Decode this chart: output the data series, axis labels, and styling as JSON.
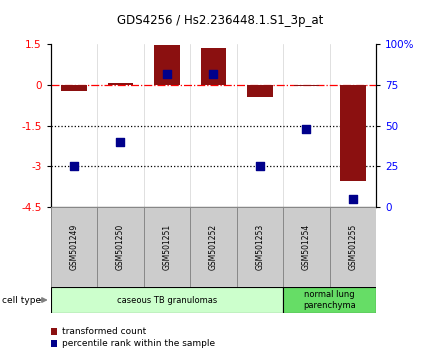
{
  "title": "GDS4256 / Hs2.236448.1.S1_3p_at",
  "samples": [
    "GSM501249",
    "GSM501250",
    "GSM501251",
    "GSM501252",
    "GSM501253",
    "GSM501254",
    "GSM501255"
  ],
  "transformed_count": [
    -0.22,
    0.07,
    1.48,
    1.35,
    -0.45,
    -0.04,
    -3.55
  ],
  "percentile_rank": [
    25,
    40,
    82,
    82,
    25,
    48,
    5
  ],
  "ylim_left": [
    -4.5,
    1.5
  ],
  "ylim_right": [
    0,
    100
  ],
  "left_yticks": [
    1.5,
    0,
    -1.5,
    -3,
    -4.5
  ],
  "right_yticks": [
    0,
    25,
    50,
    75,
    100
  ],
  "right_yticklabels": [
    "0",
    "25",
    "50",
    "75",
    "100%"
  ],
  "hline_zero": 0,
  "hlines_dotted": [
    -1.5,
    -3
  ],
  "bar_color": "#8B1010",
  "dot_color": "#00008B",
  "background_color": "#ffffff",
  "cell_type_groups": [
    {
      "label": "caseous TB granulomas",
      "start": 0,
      "end": 5,
      "color": "#ccffcc"
    },
    {
      "label": "normal lung\nparenchyma",
      "start": 5,
      "end": 7,
      "color": "#66dd66"
    }
  ],
  "legend_bar_label": "transformed count",
  "legend_dot_label": "percentile rank within the sample",
  "cell_type_label": "cell type",
  "bar_width": 0.55,
  "dot_size": 30,
  "sample_box_color": "#cccccc",
  "sample_box_edgecolor": "#888888"
}
